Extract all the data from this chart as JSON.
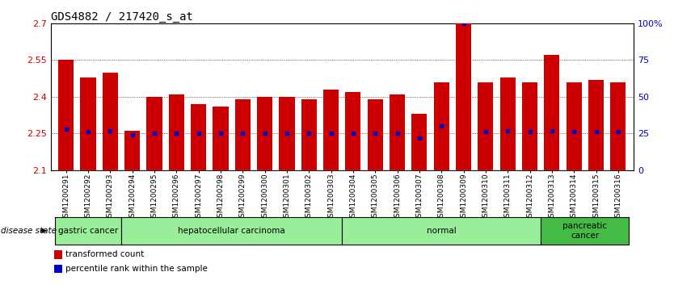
{
  "title": "GDS4882 / 217420_s_at",
  "samples": [
    "GSM1200291",
    "GSM1200292",
    "GSM1200293",
    "GSM1200294",
    "GSM1200295",
    "GSM1200296",
    "GSM1200297",
    "GSM1200298",
    "GSM1200299",
    "GSM1200300",
    "GSM1200301",
    "GSM1200302",
    "GSM1200303",
    "GSM1200304",
    "GSM1200305",
    "GSM1200306",
    "GSM1200307",
    "GSM1200308",
    "GSM1200309",
    "GSM1200310",
    "GSM1200311",
    "GSM1200312",
    "GSM1200313",
    "GSM1200314",
    "GSM1200315",
    "GSM1200316"
  ],
  "transformed_count": [
    2.55,
    2.48,
    2.5,
    2.26,
    2.4,
    2.41,
    2.37,
    2.36,
    2.39,
    2.4,
    2.4,
    2.39,
    2.43,
    2.42,
    2.39,
    2.41,
    2.33,
    2.46,
    2.7,
    2.46,
    2.48,
    2.46,
    2.57,
    2.46,
    2.47,
    2.46
  ],
  "percentile_rank": [
    28,
    26,
    27,
    24,
    25,
    25,
    25,
    25,
    25,
    25,
    25,
    25,
    25,
    25,
    25,
    25,
    22,
    30,
    100,
    26,
    27,
    26,
    27,
    26,
    26,
    26
  ],
  "disease_groups": [
    {
      "label": "gastric cancer",
      "start": 0,
      "end": 3,
      "color": "#99ee99"
    },
    {
      "label": "hepatocellular carcinoma",
      "start": 3,
      "end": 13,
      "color": "#99ee99"
    },
    {
      "label": "normal",
      "start": 13,
      "end": 22,
      "color": "#99ee99"
    },
    {
      "label": "pancreatic\ncancer",
      "start": 22,
      "end": 26,
      "color": "#44bb44"
    }
  ],
  "ylim": [
    2.1,
    2.7
  ],
  "yticks": [
    2.1,
    2.25,
    2.4,
    2.55,
    2.7
  ],
  "right_yticks": [
    0,
    25,
    50,
    75,
    100
  ],
  "right_ylabels": [
    "0",
    "25",
    "50",
    "75",
    "100%"
  ],
  "bar_color": "#cc0000",
  "percentile_color": "#0000cc",
  "bar_width": 0.7,
  "background_color": "#ffffff",
  "plot_bg_color": "#ffffff",
  "grid_color": "#000000",
  "xlabel_color": "#cc0000",
  "ylabel_right_color": "#0000cc",
  "title_color": "#000000",
  "title_fontsize": 10,
  "tick_label_fontsize": 6.5,
  "legend_fontsize": 8,
  "disease_label_fontsize": 8,
  "disease_state_label": "disease state"
}
